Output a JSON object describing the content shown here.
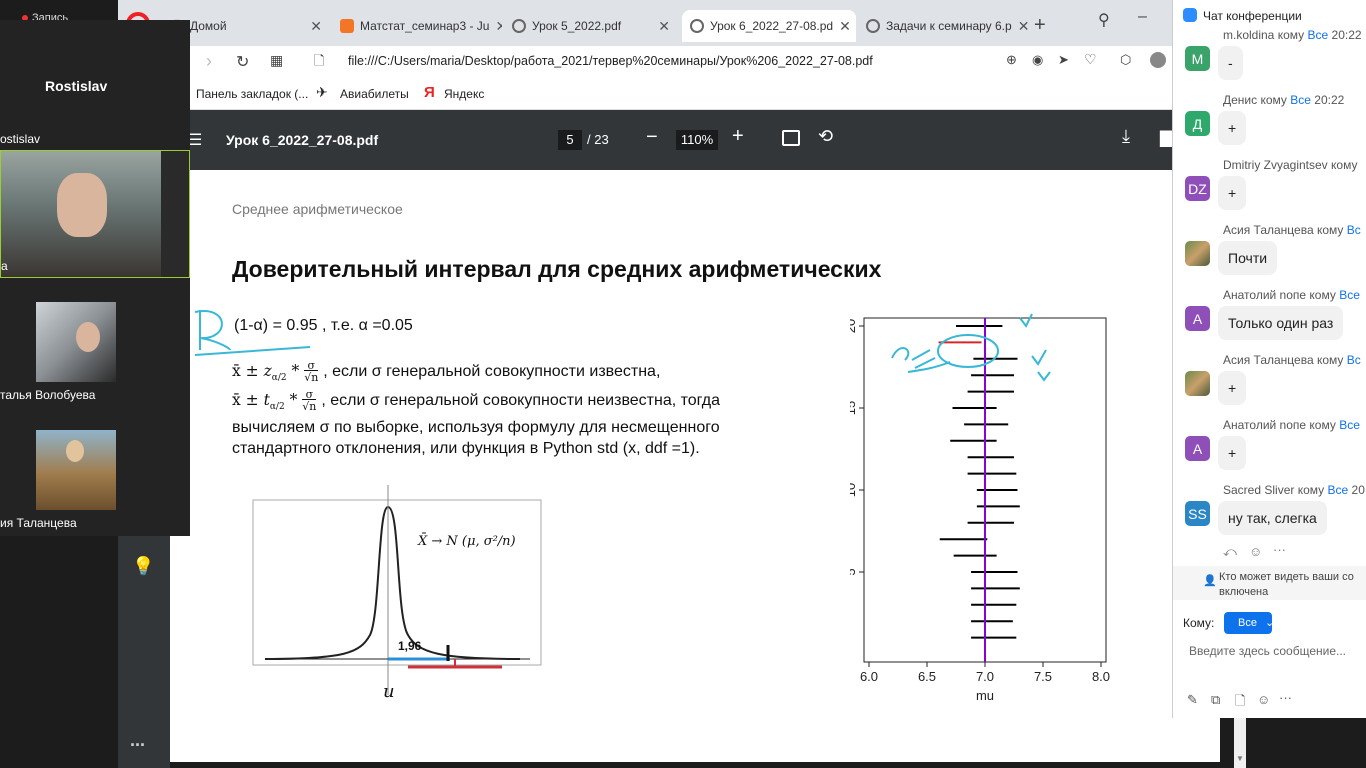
{
  "tabs": [
    {
      "label": "Домой",
      "icon": "home-icon"
    },
    {
      "label": "Матстат_семинар3 - Ju",
      "icon": "jupyter-icon"
    },
    {
      "label": "Урок 5_2022.pdf",
      "icon": "globe-icon"
    },
    {
      "label": "Урок 6_2022_27-08.pd",
      "icon": "globe-icon"
    },
    {
      "label": "Задачи к семинару 6.р",
      "icon": "globe-icon"
    }
  ],
  "address": "file:///C:/Users/maria/Desktop/работа_2021/тервер%20семинары/Урок%206_2022_27-08.pdf",
  "bookmarks": [
    "Панель закладок (...",
    "Авиабилеты",
    "Яндекс"
  ],
  "pdf": {
    "title": "Урок 6_2022_27-08.pdf",
    "page": "5",
    "total": "/ 23",
    "zoom": "110%"
  },
  "slide": {
    "section": "Среднее арифметическое",
    "heading": "Доверительный интервал для средних арифметических",
    "line1": "(1-α) = 0.95 , т.е. α =0.05",
    "line2": ", если  σ генеральной совокупности известна,",
    "line3": ", если σ генеральной совокупности неизвестна, тогда",
    "line4": "вычисляем σ по выборке, используя формулу для несмещенного",
    "line5": "стандартного отклонения, или функция в Python std (x, ddf =1).",
    "xbar_pm": "x̄ ±",
    "z_sym": "z",
    "t_sym": "t",
    "half_alpha": "α/2",
    "star": "*",
    "sigma": "σ",
    "sqrt_n": "√n",
    "norm_formula": "X̄ → N (μ, σ²/n)",
    "value_196": "1,96",
    "mu_label": "u"
  },
  "chart_data": {
    "type": "scatter",
    "title": "",
    "xlabel": "mu",
    "ylabel": "",
    "xlim": [
      6.0,
      8.0
    ],
    "ylim": [
      0,
      20
    ],
    "xticks": [
      "6.0",
      "6.5",
      "7.0",
      "7.5",
      "8.0"
    ],
    "yticks": [
      "5",
      "10",
      "15",
      "20"
    ],
    "reference_line": 7.0,
    "intervals": [
      {
        "i": 1,
        "lo": 6.88,
        "hi": 7.27
      },
      {
        "i": 2,
        "lo": 6.88,
        "hi": 7.24
      },
      {
        "i": 3,
        "lo": 6.88,
        "hi": 7.27
      },
      {
        "i": 4,
        "lo": 6.88,
        "hi": 7.3
      },
      {
        "i": 5,
        "lo": 6.88,
        "hi": 7.28
      },
      {
        "i": 6,
        "lo": 6.73,
        "hi": 7.1
      },
      {
        "i": 7,
        "lo": 6.61,
        "hi": 7.02
      },
      {
        "i": 8,
        "lo": 6.85,
        "hi": 7.25
      },
      {
        "i": 9,
        "lo": 6.93,
        "hi": 7.3
      },
      {
        "i": 10,
        "lo": 6.93,
        "hi": 7.28
      },
      {
        "i": 11,
        "lo": 6.85,
        "hi": 7.27
      },
      {
        "i": 12,
        "lo": 6.85,
        "hi": 7.25
      },
      {
        "i": 13,
        "lo": 6.7,
        "hi": 7.1
      },
      {
        "i": 14,
        "lo": 6.82,
        "hi": 7.2
      },
      {
        "i": 15,
        "lo": 6.72,
        "hi": 7.1
      },
      {
        "i": 16,
        "lo": 6.85,
        "hi": 7.25
      },
      {
        "i": 17,
        "lo": 6.88,
        "hi": 7.25
      },
      {
        "i": 18,
        "lo": 6.9,
        "hi": 7.28
      },
      {
        "i": 19,
        "lo": 6.6,
        "hi": 6.97,
        "miss": true
      },
      {
        "i": 20,
        "lo": 6.75,
        "hi": 7.15
      }
    ],
    "colors": {
      "line": "#000000",
      "miss": "#d62728",
      "ref": "#8b00d6"
    }
  },
  "video": {
    "header_name": "Rostislav",
    "tiles": [
      "ostislav",
      "а",
      "талья Волобуева",
      "ия Таланцева"
    ]
  },
  "chat": {
    "title": "Чат конференции",
    "messages": [
      {
        "sender": "m.koldina кому",
        "to": "Все",
        "time": "20:22",
        "text": "-",
        "initial": "M",
        "color": "#3aa36a"
      },
      {
        "sender": "Денис кому",
        "to": "Все",
        "time": "20:22",
        "text": "+",
        "initial": "Д",
        "color": "#2fa86b"
      },
      {
        "sender": "Dmitriy Zvyagintsev кому",
        "to": "",
        "time": "",
        "text": "+",
        "initial": "DZ",
        "color": "#8e4fb8"
      },
      {
        "sender": "Асия Таланцева кому",
        "to": "Вс",
        "time": "",
        "text": "Почти",
        "initial": "",
        "color": "#b08a5a"
      },
      {
        "sender": "Анатолий nопе кому",
        "to": "Все",
        "time": "",
        "text": "Только один раз",
        "initial": "A",
        "color": "#8e4fb8"
      },
      {
        "sender": "Асия Таланцева кому",
        "to": "Вс",
        "time": "",
        "text": "+",
        "initial": "",
        "color": "#b08a5a"
      },
      {
        "sender": "Анатолий nопе кому",
        "to": "Все",
        "time": "",
        "text": "+",
        "initial": "A",
        "color": "#8e4fb8"
      },
      {
        "sender": "Sacred Sliver кому",
        "to": "Все",
        "time": "20",
        "text": "ну так, слегка",
        "initial": "SS",
        "color": "#2b86c5"
      }
    ],
    "privacy_line1": "Кто может видеть ваши со",
    "privacy_line2": "включена",
    "to_label": "Кому:",
    "to_value": "Все",
    "input_placeholder": "Введите здесь сообщение..."
  },
  "misc": {
    "recording": "Запись",
    "more": "..."
  }
}
